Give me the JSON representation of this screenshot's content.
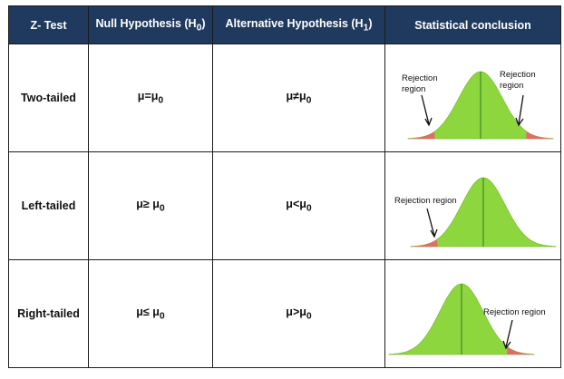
{
  "table": {
    "headers": [
      {
        "main": "Z- Test",
        "sub": ""
      },
      {
        "main": "Null Hypothesis (H",
        "sub": "0",
        "tail": ")"
      },
      {
        "main": "Alternative Hypothesis (H",
        "sub": "1",
        "tail": ")"
      },
      {
        "main": "Statistical conclusion",
        "sub": ""
      }
    ],
    "rows": [
      {
        "test": "Two-tailed",
        "null": {
          "main": "μ=μ",
          "sub": "0"
        },
        "alt": {
          "main": "μ≠μ",
          "sub": "0"
        },
        "labels": [
          "Rejection",
          "region",
          "Rejection",
          "region"
        ],
        "tail": "two"
      },
      {
        "test": "Left-tailed",
        "null": {
          "main": "μ≥ μ",
          "sub": "0"
        },
        "alt": {
          "main": "μ<μ",
          "sub": "0"
        },
        "labels": [
          "Rejection region"
        ],
        "tail": "left"
      },
      {
        "test": "Right-tailed",
        "null": {
          "main": "μ≤ μ",
          "sub": "0"
        },
        "alt": {
          "main": "μ>μ",
          "sub": "0"
        },
        "labels": [
          "Rejection region"
        ],
        "tail": "right"
      }
    ]
  },
  "colors": {
    "header_bg": "#1f3a5e",
    "curve_fill": "#8ed63e",
    "rejection_fill": "#e46a6a",
    "center_line": "#3d8a2a"
  }
}
